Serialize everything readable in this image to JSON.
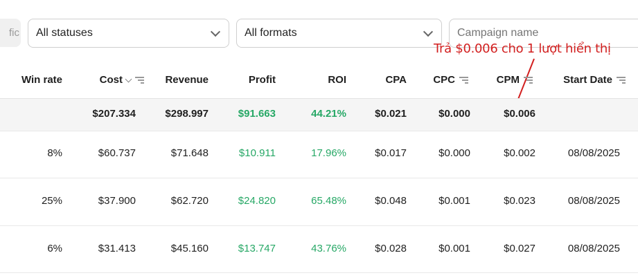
{
  "filters": {
    "traffic_chip": "fic",
    "status_select": "All statuses",
    "format_select": "All formats",
    "campaign_placeholder": "Campaign name"
  },
  "annotation": "Trả $0.006 cho 1 lượt hiển thị",
  "colors": {
    "positive": "#27a866",
    "annotation": "#d21f1f"
  },
  "columns": [
    "Win rate",
    "Cost",
    "Revenue",
    "Profit",
    "ROI",
    "CPA",
    "CPC",
    "CPM",
    "Start Date"
  ],
  "summary": [
    "",
    "$207.334",
    "$298.997",
    "$91.663",
    "44.21%",
    "$0.021",
    "$0.000",
    "$0.006",
    ""
  ],
  "rows": [
    [
      "8%",
      "$60.737",
      "$71.648",
      "$10.911",
      "17.96%",
      "$0.017",
      "$0.000",
      "$0.002",
      "08/08/2025"
    ],
    [
      "25%",
      "$37.900",
      "$62.720",
      "$24.820",
      "65.48%",
      "$0.048",
      "$0.001",
      "$0.023",
      "08/08/2025"
    ],
    [
      "6%",
      "$31.413",
      "$45.160",
      "$13.747",
      "43.76%",
      "$0.028",
      "$0.001",
      "$0.027",
      "08/08/2025"
    ]
  ]
}
